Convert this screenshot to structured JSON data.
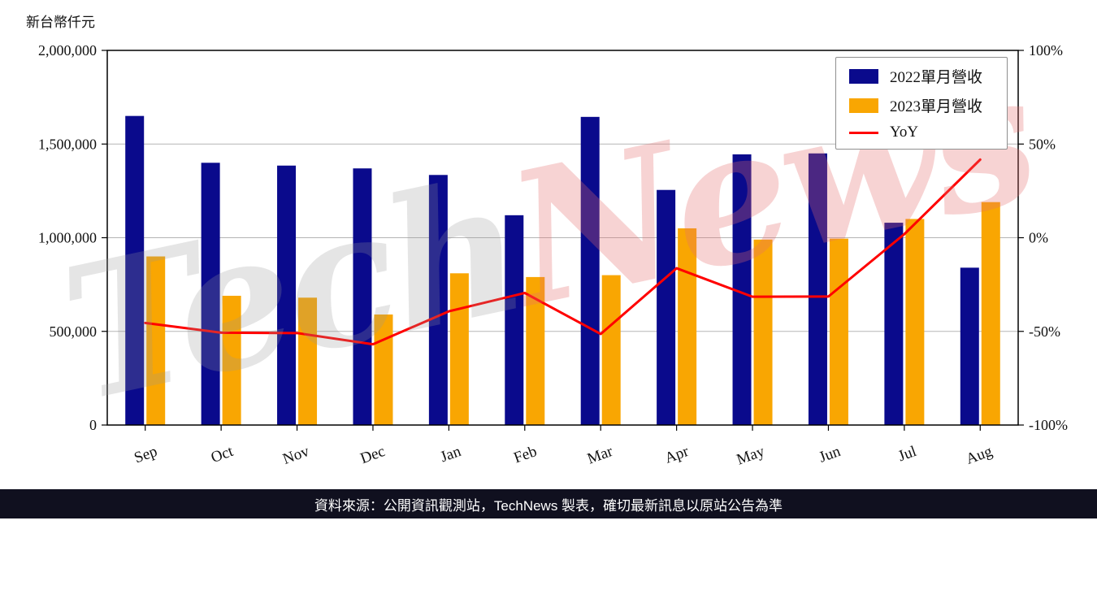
{
  "unit_label": "新台幣仟元",
  "watermark": {
    "part1": "Tech",
    "part2": "News"
  },
  "footer": {
    "text": "資料來源：公開資訊觀測站，TechNews 製表，確切最新訊息以原站公告為準"
  },
  "chart_data": {
    "type": "bar+line",
    "title": "",
    "categories": [
      "Sep",
      "Oct",
      "Nov",
      "Dec",
      "Jan",
      "Feb",
      "Mar",
      "Apr",
      "May",
      "Jun",
      "Jul",
      "Aug"
    ],
    "series": [
      {
        "name": "2022單月營收",
        "type": "bar",
        "axis": "left",
        "color": "#0a0a8c",
        "values": [
          1650000,
          1400000,
          1385000,
          1370000,
          1335000,
          1120000,
          1645000,
          1255000,
          1445000,
          1450000,
          1080000,
          840000
        ]
      },
      {
        "name": "2023單月營收",
        "type": "bar",
        "axis": "left",
        "color": "#f9a602",
        "values": [
          900000,
          690000,
          680000,
          590000,
          810000,
          790000,
          800000,
          1050000,
          990000,
          995000,
          1100000,
          1190000
        ]
      },
      {
        "name": "YoY",
        "type": "line",
        "axis": "right",
        "color": "#ff0000",
        "values": [
          -45.5,
          -50.7,
          -50.9,
          -56.9,
          -39.3,
          -29.5,
          -51.4,
          -16.3,
          -31.5,
          -31.4,
          1.9,
          41.7
        ]
      }
    ],
    "left_axis": {
      "label": "新台幣仟元",
      "min": 0,
      "max": 2000000,
      "tick_values": [
        0,
        500000,
        1000000,
        1500000,
        2000000
      ],
      "tick_labels": [
        "0",
        "500,000",
        "1,000,000",
        "1,500,000",
        "2,000,000"
      ]
    },
    "right_axis": {
      "min": -100,
      "max": 100,
      "tick_values": [
        -100,
        -50,
        0,
        50,
        100
      ],
      "tick_labels": [
        "-100%",
        "-50%",
        "0%",
        "50%",
        "100%"
      ]
    },
    "grid": true,
    "legend_position": "top-right"
  }
}
